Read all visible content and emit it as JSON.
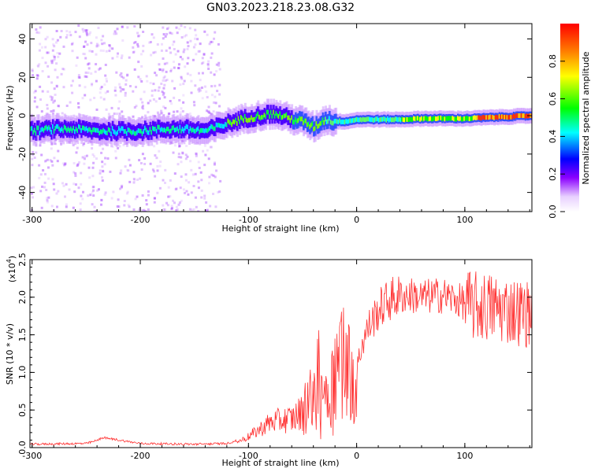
{
  "title": "GN03.2023.218.23.08.G32",
  "colors": {
    "snr_line": "#ff3333",
    "frame": "#000000",
    "spectrogram_background": "#ffffff",
    "colormap": [
      "#ffffff",
      "#8b00ff",
      "#0000ff",
      "#00ffff",
      "#00ff00",
      "#ffff00",
      "#ff0000"
    ]
  },
  "chart_data": [
    {
      "type": "heatmap",
      "name": "spectrogram",
      "xlabel": "Height of straight line (km)",
      "ylabel": "Frequency (Hz)",
      "xlim": [
        -302,
        162
      ],
      "ylim": [
        -50,
        48
      ],
      "x_ticks": [
        -300,
        -200,
        -100,
        0,
        100
      ],
      "y_ticks": [
        -40,
        -20,
        0,
        20,
        40
      ],
      "grid": false,
      "colorbar": {
        "label": "Normalized spectral amplitude",
        "range": [
          0.0,
          1.0
        ],
        "ticks": [
          "0.0",
          "0.2",
          "0.4",
          "0.6",
          "0.8"
        ]
      },
      "ridge": {
        "x": [
          -302,
          -280,
          -260,
          -240,
          -220,
          -200,
          -180,
          -160,
          -140,
          -120,
          -100,
          -80,
          -70,
          -60,
          -50,
          -40,
          -35,
          -30,
          -20,
          -10,
          0,
          20,
          40,
          60,
          80,
          100,
          120,
          140,
          162
        ],
        "frequency": [
          -8,
          -7,
          -7,
          -8,
          -8,
          -8,
          -7,
          -7,
          -8,
          -4,
          -1,
          1,
          0,
          -2,
          -3,
          -6,
          -4,
          -2,
          -3,
          -3,
          -2,
          -2,
          -2,
          -1.5,
          -1.5,
          -1.5,
          -1,
          -0.5,
          0
        ]
      }
    },
    {
      "type": "line",
      "name": "snr",
      "xlabel": "Height of straight line (km)",
      "ylabel": "SNR (10 * v/v)",
      "y_multiplier": "(x10",
      "y_multiplier_exponent": "4",
      "y_multiplier_close": ")",
      "xlim": [
        -302,
        162
      ],
      "ylim": [
        0,
        2.5
      ],
      "x_ticks": [
        -300,
        -200,
        -100,
        0,
        100
      ],
      "y_ticks": [
        "0.0",
        "0.5",
        "1.0",
        "1.5",
        "2.0",
        "2.5"
      ],
      "y_tick_values": [
        0,
        0.5,
        1.0,
        1.5,
        2.0,
        2.5
      ],
      "grid": false,
      "series": [
        {
          "envelope_x": [
            -302,
            -250,
            -240,
            -235,
            -200,
            -150,
            -120,
            -110,
            -100,
            -90,
            -80,
            -70,
            -60,
            -50,
            -45,
            -40,
            -35,
            -30,
            -25,
            -20,
            -15,
            -10,
            -5,
            0,
            5,
            10,
            20,
            30,
            40,
            50,
            60,
            70,
            80,
            90,
            100,
            110,
            120,
            130,
            140,
            150,
            162
          ],
          "envelope_y": [
            0.03,
            0.04,
            0.08,
            0.12,
            0.04,
            0.03,
            0.04,
            0.08,
            0.15,
            0.25,
            0.35,
            0.38,
            0.4,
            0.5,
            0.8,
            0.6,
            1.2,
            0.8,
            0.8,
            1.1,
            1.4,
            1.2,
            1.1,
            1.05,
            1.4,
            1.6,
            1.85,
            2.0,
            2.04,
            2.05,
            2.02,
            2.04,
            2.05,
            2.0,
            1.95,
            1.92,
            1.92,
            1.9,
            1.88,
            1.85,
            1.82
          ]
        }
      ]
    }
  ]
}
